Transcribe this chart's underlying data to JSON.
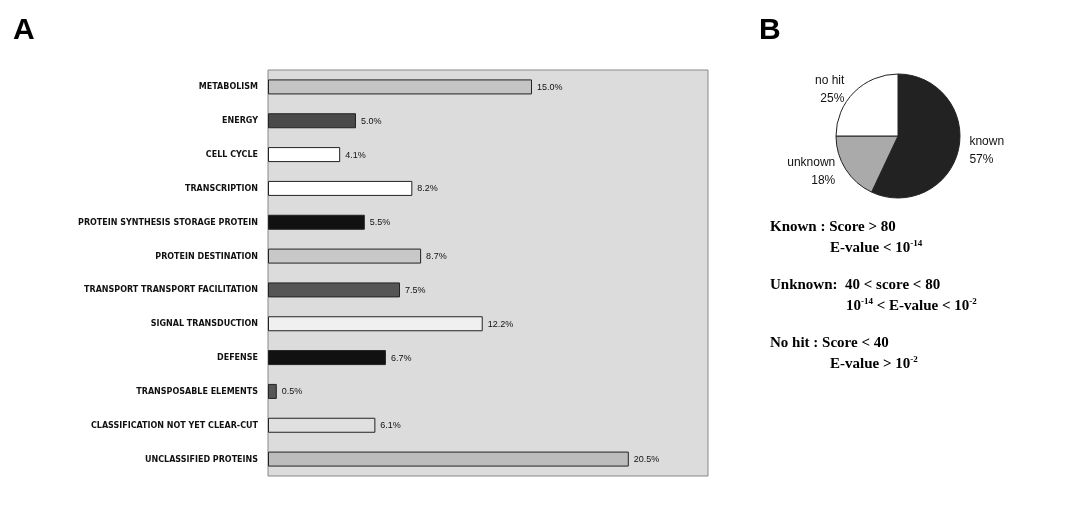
{
  "chart_data": [
    {
      "type": "bar",
      "title": "A",
      "orientation": "horizontal",
      "categories": [
        "METABOLISM",
        "ENERGY",
        "CELL CYCLE",
        "TRANSCRIPTION",
        "PROTEIN SYNTHESIS STORAGE PROTEIN",
        "PROTEIN DESTINATION",
        "TRANSPORT TRANSPORT FACILITATION",
        "SIGNAL TRANSDUCTION",
        "DEFENSE",
        "TRANSPOSABLE ELEMENTS",
        "CLASSIFICATION NOT YET CLEAR-CUT",
        "UNCLASSIFIED PROTEINS"
      ],
      "values": [
        15.0,
        5.0,
        4.1,
        8.2,
        5.5,
        8.7,
        7.5,
        12.2,
        6.7,
        0.5,
        6.1,
        20.5
      ],
      "value_labels": [
        "15.0%",
        "5.0%",
        "4.1%",
        "8.2%",
        "5.5%",
        "8.7%",
        "7.5%",
        "12.2%",
        "6.7%",
        "0.5%",
        "6.1%",
        "20.5%"
      ],
      "colors": [
        "#c4c4c4",
        "#4a4a4a",
        "#ffffff",
        "#ffffff",
        "#111111",
        "#c8c8c8",
        "#555555",
        "#f0f0f0",
        "#111111",
        "#555555",
        "#e0e0e0",
        "#bcbcbc"
      ],
      "grid": false,
      "legend": false
    },
    {
      "type": "pie",
      "title": "B",
      "categories": [
        "known",
        "unknown",
        "no hit"
      ],
      "values": [
        57,
        18,
        25
      ],
      "value_labels": [
        "57%",
        "18%",
        "25%"
      ],
      "colors": [
        "#222222",
        "#aaaaaa",
        "#ffffff"
      ],
      "legend": false,
      "annotations": [
        "Known : Score > 80",
        "E-value < 10$^{-14}$",
        "Unknown:  40 < score < 80",
        "10$^{-14}$ < E-value < 10$^{-2}$",
        "No hit : Score < 40",
        "E-value > 10$^{-2}$"
      ]
    }
  ]
}
